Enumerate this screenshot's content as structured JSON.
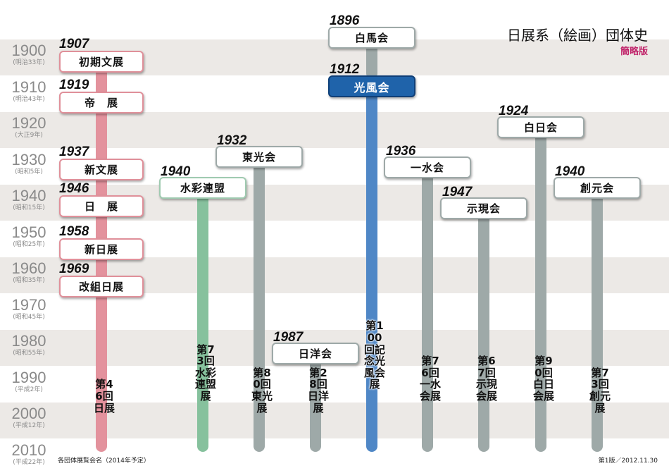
{
  "title": "日展系（絵画）団体史",
  "subtitle": "簡略版",
  "footnote": "各団体展覧会名（2014年予定）",
  "edition": "第1版／2012.11.30",
  "colors": {
    "pink": "#e3929d",
    "green": "#86c19d",
    "gray": "#9ea9a8",
    "blue": "#4f87c6",
    "featured": "#1f63aa",
    "band": "#ece9e6"
  },
  "years": [
    {
      "year": "1900",
      "era": "(明治33年)"
    },
    {
      "year": "1910",
      "era": "(明治43年)"
    },
    {
      "year": "1920",
      "era": "(大正9年)"
    },
    {
      "year": "1930",
      "era": "(昭和5年)"
    },
    {
      "year": "1940",
      "era": "(昭和15年)"
    },
    {
      "year": "1950",
      "era": "(昭和25年)"
    },
    {
      "year": "1960",
      "era": "(昭和35年)"
    },
    {
      "year": "1970",
      "era": "(昭和45年)"
    },
    {
      "year": "1980",
      "era": "(昭和55年)"
    },
    {
      "year": "1990",
      "era": "(平成2年)"
    },
    {
      "year": "2000",
      "era": "(平成12年)"
    },
    {
      "year": "2010",
      "era": "(平成22年)"
    }
  ],
  "nitten_names": [
    {
      "year": "1907",
      "name": "初期文展"
    },
    {
      "year": "1919",
      "name": "帝　展"
    },
    {
      "year": "1937",
      "name": "新文展"
    },
    {
      "year": "1946",
      "name": "日　展"
    },
    {
      "year": "1958",
      "name": "新日展"
    },
    {
      "year": "1969",
      "name": "改組日展"
    }
  ],
  "nitten_exhibition": "第46回日展",
  "groups": [
    {
      "id": "suisai",
      "year": "1940",
      "name": "水彩連盟",
      "exhibition": "第73回水彩連盟展",
      "color": "green"
    },
    {
      "id": "toko",
      "year": "1932",
      "name": "東光会",
      "exhibition": "第80回東光展",
      "color": "gray"
    },
    {
      "id": "nichiyo",
      "year": "1987",
      "name": "日洋会",
      "exhibition": "第28回日洋展",
      "color": "gray"
    },
    {
      "id": "hakuba",
      "year": "1896",
      "name": "白馬会",
      "color": "gray"
    },
    {
      "id": "kofu",
      "year": "1912",
      "name": "光風会",
      "exhibition": "第100回記念光風会展",
      "color": "blue"
    },
    {
      "id": "issui",
      "year": "1936",
      "name": "一水会",
      "exhibition": "第76回一水会展",
      "color": "gray"
    },
    {
      "id": "jigen",
      "year": "1947",
      "name": "示現会",
      "exhibition": "第67回示現会展",
      "color": "gray"
    },
    {
      "id": "hakujitsu",
      "year": "1924",
      "name": "白日会",
      "exhibition": "第90回白日会展",
      "color": "gray"
    },
    {
      "id": "sogen",
      "year": "1940",
      "name": "創元会",
      "exhibition": "第73回創元展",
      "color": "gray"
    }
  ]
}
